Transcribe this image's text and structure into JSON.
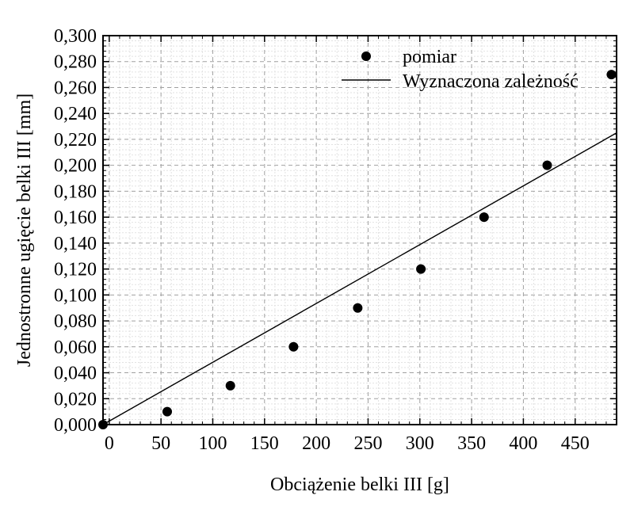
{
  "chart_data": {
    "type": "scatter",
    "xlabel": "Obciążenie belki III [g]",
    "ylabel": "Jednostronne ugięcie belki III [mm]",
    "xlim": [
      -6,
      490
    ],
    "ylim": [
      0,
      0.3
    ],
    "x_ticks": [
      0,
      50,
      100,
      150,
      200,
      250,
      300,
      350,
      400,
      450
    ],
    "x_tick_labels": [
      "0",
      "50",
      "100",
      "150",
      "200",
      "250",
      "300",
      "350",
      "400",
      "450"
    ],
    "y_ticks": [
      0,
      0.02,
      0.04,
      0.06,
      0.08,
      0.1,
      0.12,
      0.14,
      0.16,
      0.18,
      0.2,
      0.22,
      0.24,
      0.26,
      0.28,
      0.3
    ],
    "y_tick_labels": [
      "0,000",
      "0,020",
      "0,040",
      "0,060",
      "0,080",
      "0,100",
      "0,120",
      "0,140",
      "0,160",
      "0,180",
      "0,200",
      "0,220",
      "0,240",
      "0,260",
      "0,280",
      "0,300"
    ],
    "grid": true,
    "legend_position": "top-right",
    "series": [
      {
        "name": "pomiar",
        "kind": "points",
        "x": [
          -6,
          56,
          117,
          178,
          240,
          301,
          362,
          423,
          485
        ],
        "y": [
          0.0,
          0.01,
          0.03,
          0.06,
          0.09,
          0.12,
          0.16,
          0.2,
          0.27
        ]
      },
      {
        "name": "Wyznaczona zależność",
        "kind": "line",
        "x": [
          -6,
          490
        ],
        "y": [
          0.0,
          0.225
        ]
      }
    ]
  }
}
